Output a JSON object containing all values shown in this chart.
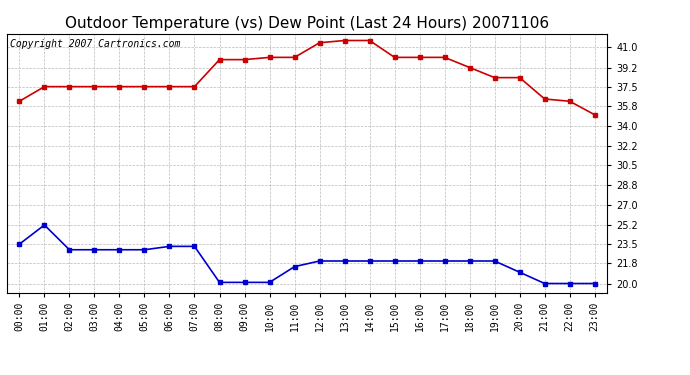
{
  "title": "Outdoor Temperature (vs) Dew Point (Last 24 Hours) 20071106",
  "copyright_text": "Copyright 2007 Cartronics.com",
  "x_labels": [
    "00:00",
    "01:00",
    "02:00",
    "03:00",
    "04:00",
    "05:00",
    "06:00",
    "07:00",
    "08:00",
    "09:00",
    "10:00",
    "11:00",
    "12:00",
    "13:00",
    "14:00",
    "15:00",
    "16:00",
    "17:00",
    "18:00",
    "19:00",
    "20:00",
    "21:00",
    "22:00",
    "23:00"
  ],
  "temp_data": [
    36.2,
    37.5,
    37.5,
    37.5,
    37.5,
    37.5,
    37.5,
    37.5,
    39.9,
    39.9,
    40.1,
    40.1,
    41.4,
    41.6,
    41.6,
    40.1,
    40.1,
    40.1,
    39.2,
    38.3,
    38.3,
    36.4,
    36.2,
    35.0
  ],
  "dew_data": [
    23.5,
    25.2,
    23.0,
    23.0,
    23.0,
    23.0,
    23.3,
    23.3,
    20.1,
    20.1,
    20.1,
    21.5,
    22.0,
    22.0,
    22.0,
    22.0,
    22.0,
    22.0,
    22.0,
    22.0,
    21.0,
    20.0,
    20.0,
    20.0
  ],
  "temp_color": "#cc0000",
  "dew_color": "#0000cc",
  "grid_color": "#bbbbbb",
  "bg_color": "#ffffff",
  "plot_bg_color": "#ffffff",
  "yticks": [
    20.0,
    21.8,
    23.5,
    25.2,
    27.0,
    28.8,
    30.5,
    32.2,
    34.0,
    35.8,
    37.5,
    39.2,
    41.0
  ],
  "ylim": [
    19.2,
    42.2
  ],
  "title_fontsize": 11,
  "copyright_fontsize": 7,
  "tick_fontsize": 7,
  "marker": "s",
  "markersize": 3,
  "linewidth": 1.2
}
